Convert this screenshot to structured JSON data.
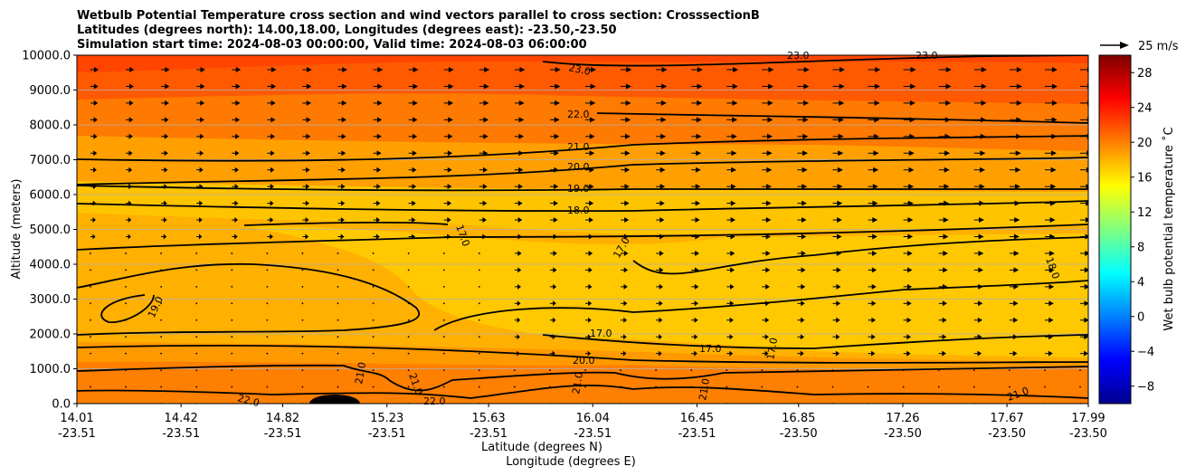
{
  "chart_data": {
    "type": "contour",
    "title": [
      "Wetbulb Potential Temperature cross section and wind vectors parallel to cross section: CrosssectionB",
      "Latitudes (degrees north): 14.00,18.00, Longitudes (degrees east): -23.50,-23.50",
      "Simulation start time: 2024-08-03 00:00:00, Valid time: 2024-08-03 06:00:00"
    ],
    "xlabel": "Latitude (degrees N)",
    "xlabel2": "Longitude (degrees E)",
    "ylabel": "Altitude (meters)",
    "xlim": [
      14.01,
      17.99
    ],
    "ylim": [
      0,
      10000
    ],
    "x_ticks": [
      {
        "lat": "14.01",
        "lon": "-23.51"
      },
      {
        "lat": "14.42",
        "lon": "-23.51"
      },
      {
        "lat": "14.82",
        "lon": "-23.51"
      },
      {
        "lat": "15.23",
        "lon": "-23.51"
      },
      {
        "lat": "15.63",
        "lon": "-23.51"
      },
      {
        "lat": "16.04",
        "lon": "-23.51"
      },
      {
        "lat": "16.45",
        "lon": "-23.51"
      },
      {
        "lat": "16.85",
        "lon": "-23.50"
      },
      {
        "lat": "17.26",
        "lon": "-23.50"
      },
      {
        "lat": "17.67",
        "lon": "-23.50"
      },
      {
        "lat": "17.99",
        "lon": "-23.50"
      }
    ],
    "y_ticks": [
      "0.0",
      "1000.0",
      "2000.0",
      "3000.0",
      "4000.0",
      "5000.0",
      "6000.0",
      "7000.0",
      "8000.0",
      "9000.0",
      "10000.0"
    ],
    "grid": "horizontal",
    "colorbar": {
      "label": "Wet bulb potential temperature ˚C",
      "range": [
        -10,
        30
      ],
      "ticks": [
        "−8",
        "−4",
        "0",
        "4",
        "8",
        "12",
        "16",
        "20",
        "24",
        "28"
      ],
      "colormap": "jet"
    },
    "quiver_key": {
      "label": "25 m/s"
    },
    "wind": {
      "direction": "toward increasing latitude",
      "stronger": "upper levels and north of 16.0"
    },
    "contour_levels": [
      {
        "value": 17.0,
        "label": "17.0"
      },
      {
        "value": 18.0,
        "label": "18.0"
      },
      {
        "value": 19.0,
        "label": "19.0"
      },
      {
        "value": 20.0,
        "label": "20.0"
      },
      {
        "value": 21.0,
        "label": "21.0"
      },
      {
        "value": 22.0,
        "label": "22.0"
      },
      {
        "value": 23.0,
        "label": "23.0"
      }
    ]
  }
}
